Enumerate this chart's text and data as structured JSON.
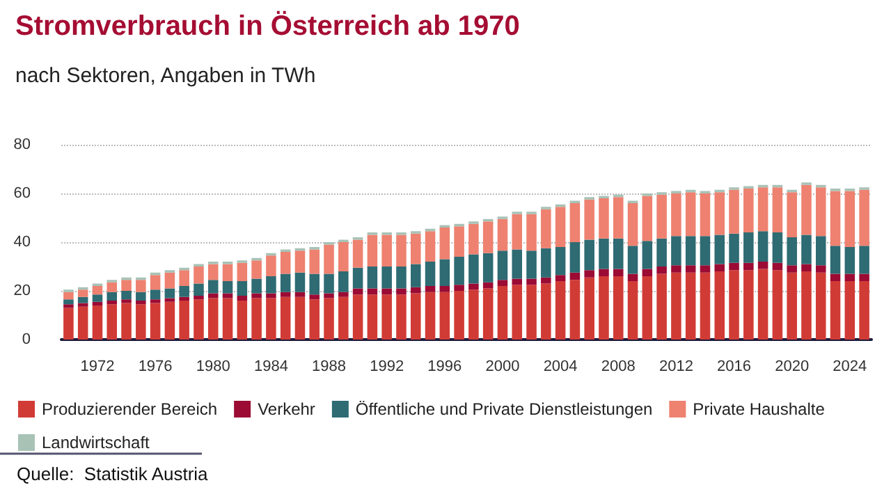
{
  "chart_data": {
    "type": "bar",
    "title": "Stromverbrauch in Österreich ab 1970",
    "subtitle": "nach Sektoren, Angaben in TWh",
    "stacked": true,
    "grid": "y",
    "legend": "bottom",
    "ylim": [
      0,
      80
    ],
    "yticks": [
      0,
      20,
      40,
      60,
      80
    ],
    "categories": [
      null,
      null,
      "1972",
      null,
      null,
      null,
      "1976",
      null,
      null,
      null,
      "1980",
      null,
      null,
      null,
      "1984",
      null,
      null,
      null,
      "1988",
      null,
      null,
      null,
      "1992",
      null,
      null,
      null,
      "1996",
      null,
      null,
      null,
      "2000",
      null,
      null,
      null,
      "2004",
      null,
      null,
      null,
      "2008",
      null,
      null,
      null,
      "2012",
      null,
      null,
      null,
      "2016",
      null,
      null,
      null,
      "2020",
      null,
      null,
      null,
      "2024",
      null
    ],
    "series": [
      {
        "name": "Produzierender Bereich",
        "color": "#d13b35",
        "values": [
          13,
          13.5,
          14,
          14.5,
          15,
          14.5,
          15,
          15.5,
          16,
          16.5,
          17,
          17,
          16,
          17,
          17,
          17.5,
          17.5,
          16.5,
          17,
          17.5,
          18.5,
          18.5,
          18.5,
          18.5,
          19,
          19.5,
          19.5,
          20,
          20.5,
          21,
          22,
          22.5,
          22.5,
          23,
          24,
          24.5,
          25.5,
          26,
          26,
          24,
          26,
          27,
          27.5,
          27.5,
          27.5,
          28,
          28.5,
          28.5,
          29,
          28.5,
          27.5,
          28,
          27.5,
          24,
          24,
          24
        ]
      },
      {
        "name": "Verkehr",
        "color": "#9b0b34",
        "values": [
          1.5,
          1.5,
          1.5,
          1.5,
          1.5,
          1.5,
          1.5,
          1.5,
          1.5,
          1.5,
          2,
          2,
          2,
          2,
          2,
          2,
          2,
          2,
          2,
          2,
          2.5,
          2.5,
          2.5,
          2.5,
          2.5,
          2.5,
          2.5,
          2.5,
          2.5,
          2.5,
          2.5,
          2.5,
          2.5,
          2.5,
          2.5,
          3,
          3,
          3,
          3,
          3,
          3,
          3,
          3,
          3,
          3,
          3,
          3,
          3,
          3,
          3,
          3,
          3,
          3,
          3,
          3,
          3
        ]
      },
      {
        "name": "Öffentliche und Private Dienstleistungen",
        "color": "#2e6b73",
        "values": [
          2,
          2.5,
          3,
          3.5,
          3.5,
          3.5,
          4,
          4,
          4.5,
          5,
          5.5,
          5,
          6,
          6,
          7,
          7.5,
          8,
          8.5,
          8,
          8.5,
          8.5,
          9,
          9,
          9,
          9.5,
          10,
          11,
          11.5,
          12,
          12,
          12,
          12,
          11.5,
          12,
          11.5,
          12.5,
          12.5,
          12.5,
          12.5,
          11.5,
          11.5,
          11.5,
          12,
          12,
          12,
          12,
          12,
          12.5,
          12.5,
          12.5,
          11.5,
          12,
          12,
          11.5,
          11,
          11.5
        ]
      },
      {
        "name": "Private Haushalte",
        "color": "#ee8170",
        "values": [
          3,
          3,
          3.5,
          4,
          4.5,
          5,
          6,
          6.5,
          6.5,
          7,
          6.5,
          7,
          7.5,
          7.5,
          8.5,
          9,
          9,
          10,
          12,
          12,
          11.5,
          13,
          13,
          13,
          12.5,
          12.5,
          13,
          12.5,
          12.5,
          13,
          13,
          14.5,
          15,
          16,
          16.5,
          16,
          16.5,
          16.5,
          17,
          17.5,
          18.5,
          18,
          17.5,
          18,
          17.5,
          17.5,
          18,
          18,
          18,
          18.5,
          18.5,
          20.5,
          20,
          22.5,
          23,
          23
        ]
      },
      {
        "name": "Landwirtschaft",
        "color": "#a8c2b6",
        "values": [
          1,
          1,
          1,
          1,
          1,
          1,
          1,
          1,
          1,
          1,
          1,
          1,
          1,
          1,
          1,
          1,
          1,
          1,
          1,
          1,
          1,
          1,
          1,
          1,
          1,
          1,
          1,
          1,
          1,
          1,
          1,
          1,
          1,
          1,
          1,
          1,
          1,
          1,
          1,
          1,
          1,
          1,
          1,
          1,
          1,
          1,
          1,
          1,
          1,
          1,
          1,
          1,
          1,
          1,
          1,
          1
        ]
      }
    ],
    "annotations": [
      "Quelle:  Statistik Austria"
    ]
  }
}
